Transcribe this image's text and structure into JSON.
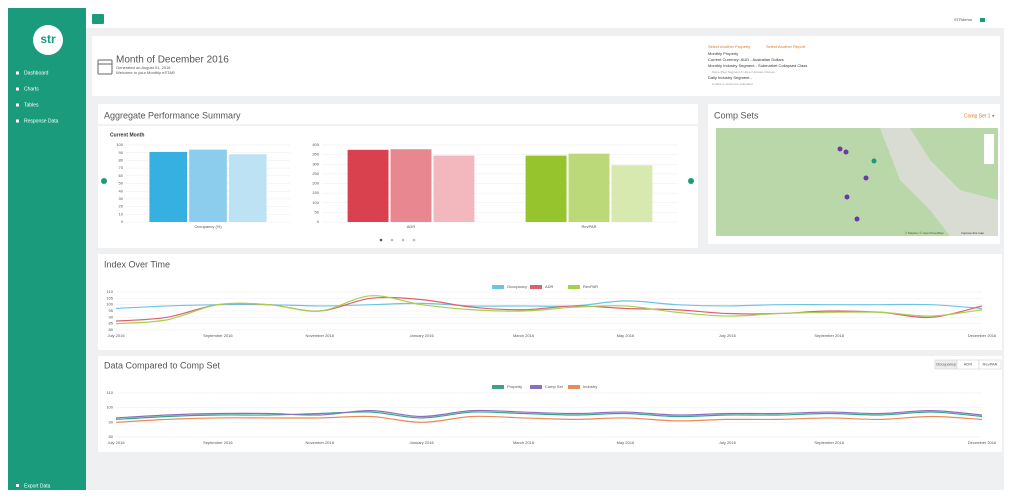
{
  "sidebar": {
    "logo": "str",
    "menu": [
      "Dashboard",
      "Charts",
      "Tables",
      "Response Data"
    ],
    "export": "Export Data"
  },
  "topbar": {
    "user": "STRdemo"
  },
  "header": {
    "title": "Month of December 2016",
    "generated": "Generated on August 01, 2016",
    "welcome": "Welcome to your Monthly eSTAR",
    "links": [
      "Select Another Property",
      "Select Another Report"
    ],
    "property": "Monthly Property",
    "currency": "Current Currency: AUD - Australian Dollars",
    "monthly_segment": "Monthly Industry Segment - Submarket Collapsed Class",
    "monthly_segment_note": "Some Peer Segment & Upper Upscale Classes",
    "daily_segment": "Daily Industry Segment -",
    "daily_segment_note": "Unable to derive/ be estimated"
  },
  "summary": {
    "title": "Aggregate Performance Summary",
    "subtitle": "Current Month",
    "charts": [
      {
        "type": "bar",
        "categories": [
          "Occupancy (%)"
        ],
        "ylim": [
          0,
          100
        ],
        "yticks": [
          0,
          10,
          20,
          30,
          40,
          50,
          60,
          70,
          80,
          90,
          100
        ],
        "series": [
          {
            "colors": [
              "#36b0e0"
            ],
            "values": [
              91
            ]
          },
          {
            "colors": [
              "#8ccdee"
            ],
            "values": [
              94
            ]
          },
          {
            "colors": [
              "#bde2f4"
            ],
            "values": [
              88
            ]
          }
        ]
      },
      {
        "type": "bar",
        "categories": [
          "ADR",
          "RevPAR"
        ],
        "ylim": [
          0,
          400
        ],
        "yticks": [
          0,
          50,
          100,
          150,
          200,
          250,
          300,
          350,
          400
        ],
        "series": [
          {
            "colors": [
              "#d9414f",
              "#96c42c"
            ],
            "values": [
              375,
              345
            ]
          },
          {
            "colors": [
              "#e8878f",
              "#bcd97a"
            ],
            "values": [
              378,
              355
            ]
          },
          {
            "colors": [
              "#f2b8bd",
              "#d8e9b0"
            ],
            "values": [
              345,
              295
            ]
          }
        ]
      }
    ]
  },
  "comp_sets": {
    "title": "Comp Sets",
    "selector": "Comp Set 1",
    "attribution": "© Mapbox © OpenStreetMap",
    "improve": "Improve this map"
  },
  "index_chart": {
    "title": "Index Over Time",
    "type": "line",
    "categories": [
      "July 2016",
      null,
      "September 2016",
      null,
      "November 2016",
      null,
      "January 2016",
      null,
      "March 2016",
      null,
      "May 2016",
      null,
      "July 2016",
      null,
      "September 2016",
      null,
      null,
      "December 2016"
    ],
    "ylim": [
      80,
      110
    ],
    "yticks": [
      80,
      85,
      90,
      95,
      100,
      105,
      110
    ],
    "series": [
      {
        "name": "Occupancy",
        "color": "#6cc3e6",
        "values": [
          97,
          99,
          100,
          100,
          99,
          100,
          101,
          99,
          99,
          99,
          103,
          100,
          99,
          100,
          100,
          100,
          100,
          97
        ]
      },
      {
        "name": "ADR",
        "color": "#d9636e",
        "values": [
          87,
          90,
          100,
          100,
          95,
          105,
          104,
          98,
          96,
          99,
          97,
          96,
          93,
          93,
          95,
          94,
          90,
          99
        ]
      },
      {
        "name": "RevPAR",
        "color": "#a8cf52",
        "values": [
          85,
          88,
          100,
          100,
          95,
          107,
          100,
          96,
          95,
          98,
          99,
          94,
          91,
          93,
          94,
          94,
          91,
          96
        ]
      }
    ]
  },
  "compare_chart": {
    "title": "Data Compared to Comp Set",
    "type": "line",
    "buttons": [
      "Occupancy",
      "ADR",
      "RevPAR"
    ],
    "categories": [
      "July 2016",
      null,
      "September 2016",
      null,
      "November 2016",
      null,
      "January 2016",
      null,
      "March 2016",
      null,
      "May 2016",
      null,
      "July 2016",
      null,
      "September 2016",
      null,
      null,
      "December 2016"
    ],
    "ylim": [
      80,
      110
    ],
    "yticks": [
      80,
      90,
      100,
      110
    ],
    "series": [
      {
        "name": "Property",
        "color": "#3aa38a",
        "values": [
          92,
          94,
          95,
          95,
          96,
          97,
          93,
          97,
          96,
          95,
          96,
          94,
          95,
          95,
          96,
          95,
          97,
          94
        ]
      },
      {
        "name": "Comp Set",
        "color": "#8a6fc0",
        "values": [
          93,
          95,
          96,
          96,
          95,
          98,
          94,
          98,
          97,
          96,
          97,
          95,
          96,
          96,
          97,
          96,
          98,
          95
        ]
      },
      {
        "name": "Industry",
        "color": "#e88b5a",
        "values": [
          90,
          92,
          93,
          93,
          93,
          94,
          90,
          94,
          93,
          92,
          93,
          91,
          92,
          92,
          93,
          92,
          94,
          92
        ]
      }
    ]
  }
}
